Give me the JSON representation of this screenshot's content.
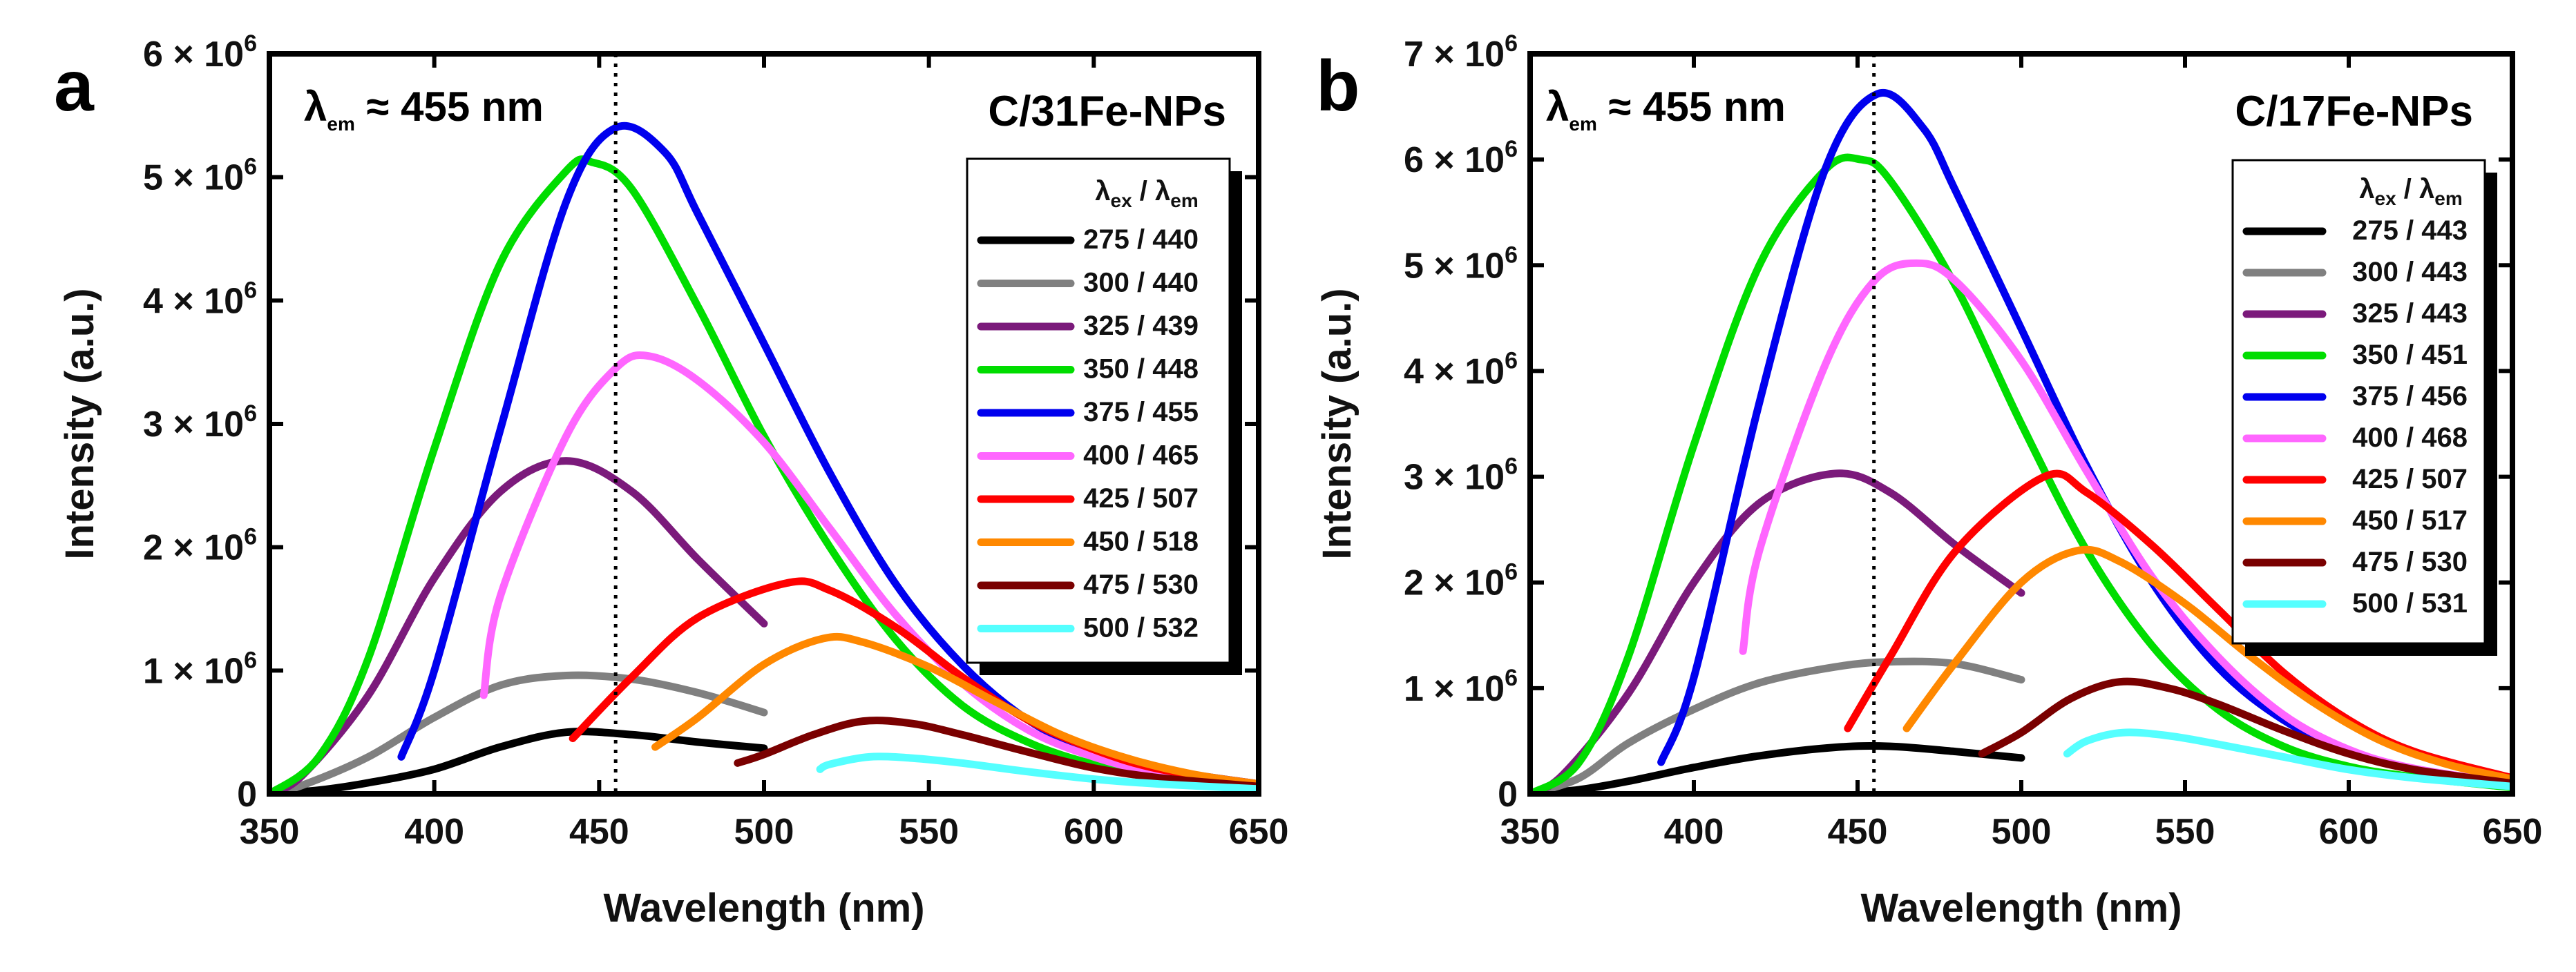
{
  "chart_data": [
    {
      "type": "line",
      "panel": "a",
      "sample": "C/31Fe-NPs",
      "annotation": {
        "lambda": "λ",
        "sub": "em",
        "text": " ≈ 455 nm"
      },
      "reference_line_x": 455,
      "xlabel": "Wavelength (nm)",
      "ylabel": "Intensity (a.u.)",
      "xlim": [
        350,
        650
      ],
      "ylim": [
        0,
        6000000
      ],
      "xticks": [
        350,
        400,
        450,
        500,
        550,
        600,
        650
      ],
      "yticks": [
        {
          "value": 0,
          "mant": "0",
          "exp": ""
        },
        {
          "value": 1000000,
          "mant": "1 × 10",
          "exp": "6"
        },
        {
          "value": 2000000,
          "mant": "2 × 10",
          "exp": "6"
        },
        {
          "value": 3000000,
          "mant": "3 × 10",
          "exp": "6"
        },
        {
          "value": 4000000,
          "mant": "4 × 10",
          "exp": "6"
        },
        {
          "value": 5000000,
          "mant": "5 × 10",
          "exp": "6"
        },
        {
          "value": 6000000,
          "mant": "6 × 10",
          "exp": "6"
        }
      ],
      "legend": {
        "title": {
          "ex_sym": "λ",
          "ex_sub": "ex",
          "sep": " / ",
          "em_sym": "λ",
          "em_sub": "em"
        },
        "position": "right"
      },
      "series": [
        {
          "name": "275 / 440",
          "color": "#000000",
          "x": [
            350,
            365,
            380,
            400,
            420,
            440,
            460,
            480,
            500
          ],
          "y": [
            0,
            30000,
            90000,
            200000,
            380000,
            500000,
            480000,
            420000,
            370000
          ]
        },
        {
          "name": "300 / 440",
          "color": "#808080",
          "x": [
            350,
            360,
            380,
            400,
            420,
            440,
            460,
            480,
            500
          ],
          "y": [
            0,
            70000,
            300000,
            620000,
            880000,
            960000,
            930000,
            820000,
            660000
          ]
        },
        {
          "name": "325 / 439",
          "color": "#7b1a7b",
          "x": [
            350,
            360,
            380,
            400,
            420,
            440,
            460,
            480,
            500
          ],
          "y": [
            0,
            150000,
            800000,
            1750000,
            2450000,
            2700000,
            2450000,
            1900000,
            1380000
          ]
        },
        {
          "name": "350 / 448",
          "color": "#00dd00",
          "x": [
            350,
            365,
            380,
            400,
            420,
            440,
            448,
            460,
            480,
            500,
            520,
            540,
            560,
            580,
            600,
            620,
            650
          ],
          "y": [
            0,
            300000,
            1100000,
            2800000,
            4300000,
            5050000,
            5120000,
            4900000,
            3950000,
            2900000,
            2000000,
            1250000,
            720000,
            420000,
            240000,
            150000,
            60000
          ]
        },
        {
          "name": "375 / 455",
          "color": "#0000ee",
          "x": [
            390,
            400,
            420,
            440,
            455,
            470,
            480,
            500,
            520,
            540,
            560,
            580,
            600,
            620,
            650
          ],
          "y": [
            300000,
            1000000,
            2950000,
            4800000,
            5400000,
            5200000,
            4700000,
            3650000,
            2600000,
            1700000,
            1050000,
            600000,
            340000,
            200000,
            80000
          ]
        },
        {
          "name": "400 / 465",
          "color": "#ff66ff",
          "x": [
            415,
            420,
            440,
            455,
            465,
            480,
            500,
            520,
            540,
            560,
            580,
            600,
            620,
            650
          ],
          "y": [
            800000,
            1600000,
            2900000,
            3450000,
            3550000,
            3350000,
            2850000,
            2150000,
            1450000,
            900000,
            520000,
            300000,
            170000,
            70000
          ]
        },
        {
          "name": "425 / 507",
          "color": "#ff0000",
          "x": [
            442,
            460,
            480,
            507,
            520,
            540,
            560,
            580,
            600,
            620,
            650
          ],
          "y": [
            450000,
            950000,
            1430000,
            1710000,
            1650000,
            1350000,
            950000,
            600000,
            360000,
            200000,
            80000
          ]
        },
        {
          "name": "450 / 518",
          "color": "#ff8800",
          "x": [
            467,
            480,
            500,
            518,
            530,
            550,
            570,
            590,
            610,
            630,
            650
          ],
          "y": [
            380000,
            620000,
            1050000,
            1260000,
            1230000,
            1030000,
            750000,
            480000,
            290000,
            160000,
            80000
          ]
        },
        {
          "name": "475 / 530",
          "color": "#7a0000",
          "x": [
            492,
            500,
            515,
            530,
            545,
            560,
            580,
            600,
            620,
            650
          ],
          "y": [
            250000,
            320000,
            480000,
            590000,
            570000,
            480000,
            340000,
            210000,
            130000,
            60000
          ]
        },
        {
          "name": "500 / 532",
          "color": "#55ffff",
          "x": [
            517,
            520,
            532,
            545,
            560,
            580,
            600,
            620,
            650
          ],
          "y": [
            200000,
            240000,
            300000,
            290000,
            250000,
            180000,
            120000,
            80000,
            40000
          ]
        }
      ]
    },
    {
      "type": "line",
      "panel": "b",
      "sample": "C/17Fe-NPs",
      "annotation": {
        "lambda": "λ",
        "sub": "em",
        "text": " ≈ 455 nm"
      },
      "reference_line_x": 455,
      "xlabel": "Wavelength (nm)",
      "ylabel": "Intensity (a.u.)",
      "xlim": [
        350,
        650
      ],
      "ylim": [
        0,
        7000000
      ],
      "xticks": [
        350,
        400,
        450,
        500,
        550,
        600,
        650
      ],
      "yticks": [
        {
          "value": 0,
          "mant": "0",
          "exp": ""
        },
        {
          "value": 1000000,
          "mant": "1 × 10",
          "exp": "6"
        },
        {
          "value": 2000000,
          "mant": "2 × 10",
          "exp": "6"
        },
        {
          "value": 3000000,
          "mant": "3 × 10",
          "exp": "6"
        },
        {
          "value": 4000000,
          "mant": "4 × 10",
          "exp": "6"
        },
        {
          "value": 5000000,
          "mant": "5 × 10",
          "exp": "6"
        },
        {
          "value": 6000000,
          "mant": "6 × 10",
          "exp": "6"
        },
        {
          "value": 7000000,
          "mant": "7 × 10",
          "exp": "6"
        }
      ],
      "legend": {
        "title": {
          "ex_sym": "λ",
          "ex_sub": "ex",
          "sep": " / ",
          "em_sym": "λ",
          "em_sub": "em"
        },
        "position": "right"
      },
      "series": [
        {
          "name": "275 / 443",
          "color": "#000000",
          "x": [
            350,
            365,
            380,
            400,
            420,
            443,
            460,
            480,
            500
          ],
          "y": [
            0,
            40000,
            120000,
            250000,
            360000,
            440000,
            450000,
            400000,
            340000
          ]
        },
        {
          "name": "300 / 443",
          "color": "#808080",
          "x": [
            350,
            365,
            380,
            400,
            420,
            443,
            460,
            480,
            500
          ],
          "y": [
            0,
            150000,
            480000,
            800000,
            1050000,
            1200000,
            1250000,
            1230000,
            1080000
          ]
        },
        {
          "name": "325 / 443",
          "color": "#7b1a7b",
          "x": [
            350,
            360,
            380,
            400,
            420,
            443,
            460,
            480,
            500
          ],
          "y": [
            0,
            180000,
            950000,
            2000000,
            2750000,
            3030000,
            2850000,
            2350000,
            1900000
          ]
        },
        {
          "name": "350 / 451",
          "color": "#00dd00",
          "x": [
            350,
            365,
            380,
            400,
            420,
            440,
            451,
            460,
            480,
            500,
            520,
            540,
            560,
            580,
            600,
            620,
            650
          ],
          "y": [
            0,
            300000,
            1300000,
            3300000,
            5000000,
            5900000,
            6000000,
            5800000,
            4800000,
            3500000,
            2300000,
            1400000,
            800000,
            450000,
            260000,
            160000,
            60000
          ]
        },
        {
          "name": "375 / 456",
          "color": "#0000ee",
          "x": [
            390,
            400,
            420,
            440,
            456,
            470,
            480,
            500,
            520,
            540,
            560,
            580,
            600,
            620,
            650
          ],
          "y": [
            300000,
            1100000,
            3700000,
            5900000,
            6620000,
            6300000,
            5700000,
            4400000,
            3100000,
            2000000,
            1200000,
            700000,
            400000,
            230000,
            100000
          ]
        },
        {
          "name": "400 / 468",
          "color": "#ff66ff",
          "x": [
            415,
            420,
            440,
            455,
            468,
            480,
            500,
            520,
            540,
            560,
            580,
            600,
            620,
            650
          ],
          "y": [
            1350000,
            2300000,
            4050000,
            4850000,
            5020000,
            4850000,
            4100000,
            3050000,
            2050000,
            1300000,
            750000,
            420000,
            240000,
            100000
          ]
        },
        {
          "name": "425 / 507",
          "color": "#ff0000",
          "x": [
            447,
            460,
            480,
            507,
            520,
            540,
            560,
            580,
            600,
            620,
            650
          ],
          "y": [
            620000,
            1300000,
            2300000,
            3000000,
            2850000,
            2350000,
            1750000,
            1150000,
            700000,
            400000,
            150000
          ]
        },
        {
          "name": "450 / 517",
          "color": "#ff8800",
          "x": [
            465,
            480,
            500,
            517,
            530,
            550,
            570,
            590,
            610,
            630,
            650
          ],
          "y": [
            620000,
            1250000,
            2000000,
            2300000,
            2200000,
            1800000,
            1300000,
            850000,
            500000,
            280000,
            140000
          ]
        },
        {
          "name": "475 / 530",
          "color": "#7a0000",
          "x": [
            488,
            500,
            515,
            530,
            545,
            560,
            580,
            600,
            620,
            650
          ],
          "y": [
            380000,
            580000,
            900000,
            1060000,
            1000000,
            850000,
            600000,
            380000,
            230000,
            100000
          ]
        },
        {
          "name": "500 / 531",
          "color": "#55ffff",
          "x": [
            514,
            520,
            531,
            545,
            560,
            580,
            600,
            620,
            650
          ],
          "y": [
            380000,
            500000,
            580000,
            550000,
            470000,
            350000,
            230000,
            150000,
            70000
          ]
        }
      ]
    }
  ]
}
